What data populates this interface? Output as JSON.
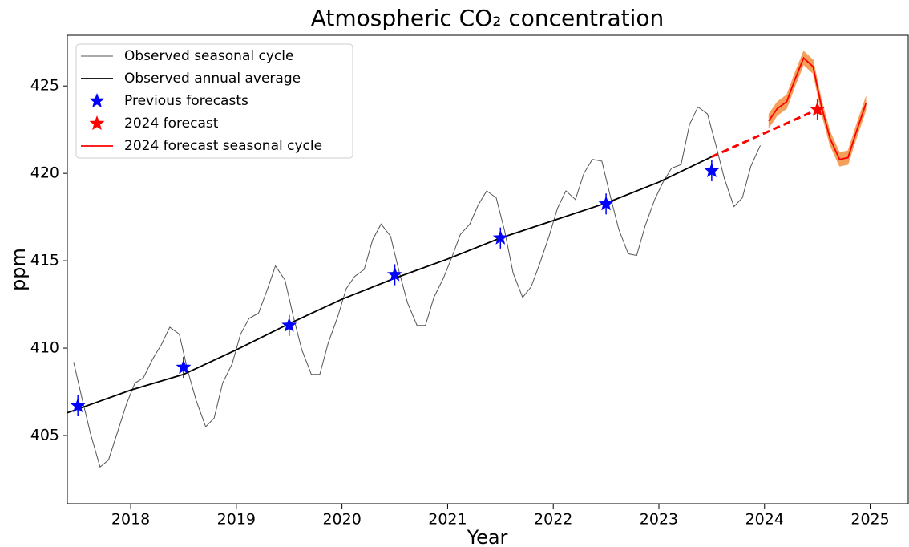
{
  "chart_data": {
    "type": "line",
    "title": "Atmospheric CO₂ concentration",
    "xlabel": "Year",
    "ylabel": "ppm",
    "xlim": [
      2017.4,
      2025.36
    ],
    "ylim": [
      401.1,
      427.9
    ],
    "xticks": [
      2018,
      2019,
      2020,
      2021,
      2022,
      2023,
      2024,
      2025
    ],
    "yticks": [
      405,
      410,
      415,
      420,
      425
    ],
    "grid": false,
    "legend": "upper left",
    "series": [
      {
        "name": "Observed seasonal cycle",
        "kind": "line",
        "color": "#555555",
        "width": 1,
        "x": [
          2017.46,
          2017.54,
          2017.62,
          2017.71,
          2017.79,
          2017.87,
          2017.96,
          2018.04,
          2018.12,
          2018.21,
          2018.29,
          2018.37,
          2018.46,
          2018.54,
          2018.62,
          2018.71,
          2018.79,
          2018.87,
          2018.96,
          2019.04,
          2019.12,
          2019.21,
          2019.29,
          2019.37,
          2019.46,
          2019.54,
          2019.62,
          2019.71,
          2019.79,
          2019.87,
          2019.96,
          2020.04,
          2020.12,
          2020.21,
          2020.29,
          2020.37,
          2020.46,
          2020.54,
          2020.62,
          2020.71,
          2020.79,
          2020.87,
          2020.96,
          2021.04,
          2021.12,
          2021.21,
          2021.29,
          2021.37,
          2021.46,
          2021.54,
          2021.62,
          2021.71,
          2021.79,
          2021.87,
          2021.96,
          2022.04,
          2022.12,
          2022.21,
          2022.29,
          2022.37,
          2022.46,
          2022.54,
          2022.62,
          2022.71,
          2022.79,
          2022.87,
          2022.96,
          2023.04,
          2023.12,
          2023.21,
          2023.29,
          2023.37,
          2023.46,
          2023.54,
          2023.62,
          2023.71,
          2023.79,
          2023.87,
          2023.96
        ],
        "values": [
          409.2,
          407.1,
          405.1,
          403.2,
          403.6,
          405.1,
          406.8,
          408.0,
          408.3,
          409.4,
          410.2,
          411.2,
          410.8,
          408.7,
          407.0,
          405.5,
          406.0,
          408.0,
          409.1,
          410.8,
          411.7,
          412.0,
          413.3,
          414.7,
          413.9,
          411.8,
          409.9,
          408.5,
          408.5,
          410.3,
          411.8,
          413.4,
          414.1,
          414.5,
          416.2,
          417.1,
          416.4,
          414.4,
          412.6,
          411.3,
          411.3,
          412.9,
          414.0,
          415.2,
          416.5,
          417.1,
          418.2,
          419.0,
          418.6,
          416.7,
          414.3,
          412.9,
          413.5,
          414.8,
          416.4,
          418.0,
          419.0,
          418.5,
          420.0,
          420.8,
          420.7,
          418.7,
          416.8,
          415.4,
          415.3,
          417.0,
          418.5,
          419.5,
          420.3,
          420.5,
          422.8,
          423.8,
          423.4,
          421.6,
          419.7,
          418.1,
          418.6,
          420.4,
          421.6
        ]
      },
      {
        "name": "Observed annual average",
        "kind": "line",
        "color": "#000000",
        "width": 1.8,
        "x": [
          2017.4,
          2018,
          2018.5,
          2019,
          2019.5,
          2020,
          2020.5,
          2021,
          2021.5,
          2022,
          2022.5,
          2023,
          2023.5
        ],
        "values": [
          406.3,
          407.6,
          408.5,
          409.9,
          411.4,
          412.8,
          414.0,
          415.1,
          416.3,
          417.3,
          418.3,
          419.5,
          420.95
        ]
      },
      {
        "name": "Previous forecasts",
        "kind": "star",
        "color": "#0000ff",
        "x": [
          2017.5,
          2018.5,
          2019.5,
          2020.5,
          2021.5,
          2022.5,
          2023.5
        ],
        "values": [
          406.7,
          408.9,
          411.3,
          414.2,
          416.3,
          418.25,
          420.15
        ],
        "errors": [
          0.6,
          0.6,
          0.6,
          0.6,
          0.6,
          0.6,
          0.6
        ]
      },
      {
        "name": "2024 forecast",
        "kind": "star",
        "color": "#ff0000",
        "x": [
          2024.5
        ],
        "values": [
          423.65
        ],
        "errors": [
          0.6
        ]
      },
      {
        "name": "2024 forecast seasonal cycle",
        "kind": "band-line",
        "color": "#ff0000",
        "width": 1.8,
        "band_color": "#f5a05a",
        "x": [
          2024.04,
          2024.12,
          2024.21,
          2024.29,
          2024.37,
          2024.46,
          2024.54,
          2024.62,
          2024.71,
          2024.79,
          2024.87,
          2024.96
        ],
        "values": [
          423.0,
          423.7,
          424.1,
          425.4,
          426.6,
          426.1,
          423.8,
          422.0,
          420.8,
          420.9,
          422.4,
          424.0
        ],
        "lower": [
          422.6,
          423.3,
          423.7,
          425.0,
          426.2,
          425.7,
          423.4,
          421.6,
          420.4,
          420.5,
          422.0,
          423.6
        ],
        "upper": [
          423.4,
          424.1,
          424.5,
          425.8,
          427.0,
          426.5,
          424.2,
          422.4,
          421.2,
          421.3,
          422.8,
          424.4
        ]
      }
    ]
  }
}
